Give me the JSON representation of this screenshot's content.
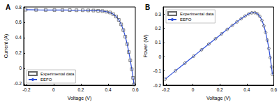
{
  "chart_data": [
    {
      "type": "line",
      "title": "A",
      "x_label": "Voltage (V)",
      "y_label": "Current (A)",
      "x": [
        -0.2057,
        -0.1291,
        -0.0588,
        0.0057,
        0.0646,
        0.1185,
        0.1678,
        0.2132,
        0.2545,
        0.2924,
        0.3269,
        0.3585,
        0.3873,
        0.4137,
        0.4373,
        0.459,
        0.4784,
        0.496,
        0.5119,
        0.5265,
        0.5398,
        0.5521,
        0.5633,
        0.5736,
        0.5833,
        0.59
      ],
      "series": [
        {
          "name": "Experimental data",
          "type": "scatter",
          "marker": "square",
          "line_style": "none",
          "color": "#404040",
          "values": [
            0.764,
            0.762,
            0.7605,
            0.7605,
            0.76,
            0.759,
            0.757,
            0.757,
            0.7555,
            0.754,
            0.7505,
            0.7465,
            0.7385,
            0.728,
            0.7065,
            0.6755,
            0.632,
            0.573,
            0.499,
            0.413,
            0.3165,
            0.212,
            0.1035,
            -0.01,
            -0.123,
            -0.21
          ]
        },
        {
          "name": "EEFO",
          "type": "line",
          "marker": "none",
          "line_style": "solid",
          "color": "#2f4fd8",
          "values": [
            0.764,
            0.762,
            0.7605,
            0.7605,
            0.76,
            0.759,
            0.757,
            0.757,
            0.7555,
            0.754,
            0.7505,
            0.7465,
            0.7385,
            0.728,
            0.7065,
            0.6755,
            0.632,
            0.573,
            0.499,
            0.413,
            0.3165,
            0.212,
            0.1035,
            -0.01,
            -0.123,
            -0.21
          ]
        }
      ],
      "xlim": [
        -0.22,
        0.6
      ],
      "xticks": [
        -0.2,
        0,
        0.2,
        0.4,
        0.6
      ],
      "ylim": [
        -0.22,
        0.8
      ],
      "yticks": [
        -0.2,
        0,
        0.2,
        0.4,
        0.6,
        0.8
      ],
      "legend": "lower left",
      "grid": false
    },
    {
      "type": "line",
      "title": "B",
      "x_label": "Voltage (V)",
      "y_label": "Power (W)",
      "x": [
        -0.2057,
        -0.1291,
        -0.0588,
        0.0057,
        0.0646,
        0.1185,
        0.1678,
        0.2132,
        0.2545,
        0.2924,
        0.3269,
        0.3585,
        0.3873,
        0.4137,
        0.4373,
        0.459,
        0.4784,
        0.496,
        0.5119,
        0.5265,
        0.5398,
        0.5521,
        0.5633,
        0.5736,
        0.5833,
        0.59
      ],
      "series": [
        {
          "name": "Experimental data",
          "type": "scatter",
          "marker": "circle",
          "line_style": "none",
          "color": "#404040",
          "values": [
            -0.1572,
            -0.0984,
            -0.0447,
            0.0043,
            0.0491,
            0.0899,
            0.127,
            0.1614,
            0.1923,
            0.2205,
            0.2453,
            0.2676,
            0.286,
            0.3012,
            0.309,
            0.3101,
            0.3023,
            0.2842,
            0.2554,
            0.2174,
            0.1708,
            0.117,
            0.0583,
            -0.0057,
            -0.0717,
            -0.1239
          ]
        },
        {
          "name": "EEFO",
          "type": "line",
          "marker": "none",
          "line_style": "solid",
          "color": "#2f4fd8",
          "values": [
            -0.1572,
            -0.0984,
            -0.0447,
            0.0043,
            0.0491,
            0.0899,
            0.127,
            0.1614,
            0.1923,
            0.2205,
            0.2453,
            0.2676,
            0.286,
            0.3012,
            0.309,
            0.3101,
            0.3023,
            0.2842,
            0.2554,
            0.2174,
            0.1708,
            0.117,
            0.0583,
            -0.0057,
            -0.0717,
            -0.1239
          ]
        }
      ],
      "xlim": [
        -0.22,
        0.6
      ],
      "xticks": [
        -0.2,
        0,
        0.2,
        0.4,
        0.6
      ],
      "ylim": [
        -0.2,
        0.35
      ],
      "yticks": [
        -0.2,
        -0.1,
        0,
        0.1,
        0.2,
        0.3
      ],
      "legend": "upper left",
      "grid": false
    }
  ]
}
